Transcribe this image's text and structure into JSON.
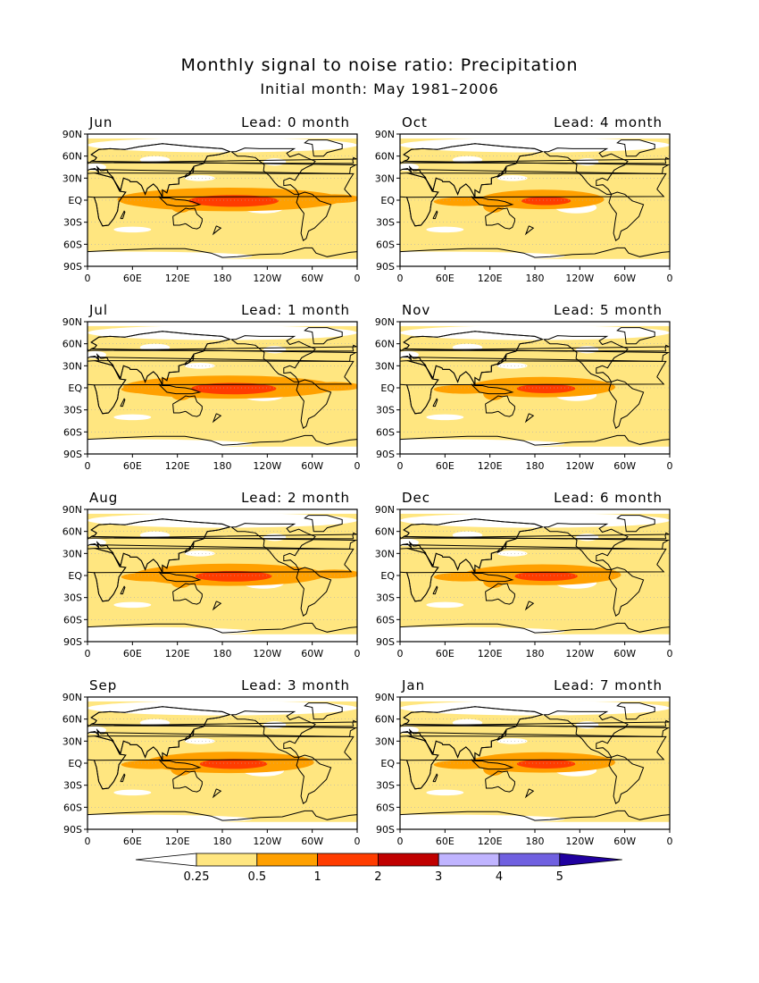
{
  "title": "Monthly signal to noise ratio: Precipitation",
  "subtitle": "Initial month: May 1981–2006",
  "lat_labels": [
    "90N",
    "60N",
    "30N",
    "EQ",
    "30S",
    "60S",
    "90S"
  ],
  "lon_labels": [
    "0",
    "60E",
    "120E",
    "180",
    "120W",
    "60W",
    "0"
  ],
  "panels": [
    {
      "month": "Jun",
      "lead": "Lead: 0 month",
      "strength": 1.0
    },
    {
      "month": "Oct",
      "lead": "Lead: 4 month",
      "strength": 0.55
    },
    {
      "month": "Jul",
      "lead": "Lead: 1 month",
      "strength": 0.95
    },
    {
      "month": "Nov",
      "lead": "Lead: 5 month",
      "strength": 0.65
    },
    {
      "month": "Aug",
      "lead": "Lead: 2 month",
      "strength": 0.85
    },
    {
      "month": "Dec",
      "lead": "Lead: 6 month",
      "strength": 0.7
    },
    {
      "month": "Sep",
      "lead": "Lead: 3 month",
      "strength": 0.75
    },
    {
      "month": "Jan",
      "lead": "Lead: 7 month",
      "strength": 0.65
    }
  ],
  "colorbar": {
    "labels": [
      "0.25",
      "0.5",
      "1",
      "2",
      "3",
      "4",
      "5"
    ],
    "colors": [
      "#ffffff",
      "#ffe680",
      "#ffa000",
      "#ff3c00",
      "#c00000",
      "#c0b4ff",
      "#7060e0",
      "#2000a0"
    ]
  }
}
